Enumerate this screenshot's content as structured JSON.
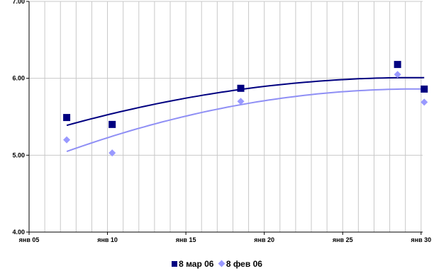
{
  "chart_data": {
    "type": "scatter",
    "title": "",
    "x_ticks": [
      {
        "label": "янв 05",
        "day": 5
      },
      {
        "label": "янв 10",
        "day": 10
      },
      {
        "label": "янв 15",
        "day": 15
      },
      {
        "label": "янв 20",
        "day": 20
      },
      {
        "label": "янв 25",
        "day": 25
      },
      {
        "label": "янв 30",
        "day": 30
      }
    ],
    "y_ticks": [
      {
        "label": "4.00",
        "value": 4.0
      },
      {
        "label": "5.00",
        "value": 5.0
      },
      {
        "label": "6.00",
        "value": 6.0
      },
      {
        "label": "7.00",
        "value": 7.0
      }
    ],
    "xlim": [
      5,
      30.1
    ],
    "ylim": [
      4.0,
      7.0
    ],
    "grid": true,
    "legend_position": "bottom",
    "series": [
      {
        "name": "8 мар 06",
        "marker": "square",
        "color": "#000080",
        "trend_color": "#000080",
        "trendline": "polynomial-2",
        "points": [
          {
            "x": 7.4,
            "y": 5.49
          },
          {
            "x": 10.3,
            "y": 5.4
          },
          {
            "x": 18.5,
            "y": 5.87
          },
          {
            "x": 28.5,
            "y": 6.18
          },
          {
            "x": 30.2,
            "y": 5.86
          }
        ]
      },
      {
        "name": "8 фев 06",
        "marker": "diamond",
        "color": "#9999ff",
        "trend_color": "#8f8ff5",
        "trendline": "polynomial-2",
        "points": [
          {
            "x": 7.4,
            "y": 5.2
          },
          {
            "x": 10.3,
            "y": 5.03
          },
          {
            "x": 18.5,
            "y": 5.7
          },
          {
            "x": 28.5,
            "y": 6.05
          },
          {
            "x": 30.2,
            "y": 5.69
          }
        ]
      }
    ]
  }
}
